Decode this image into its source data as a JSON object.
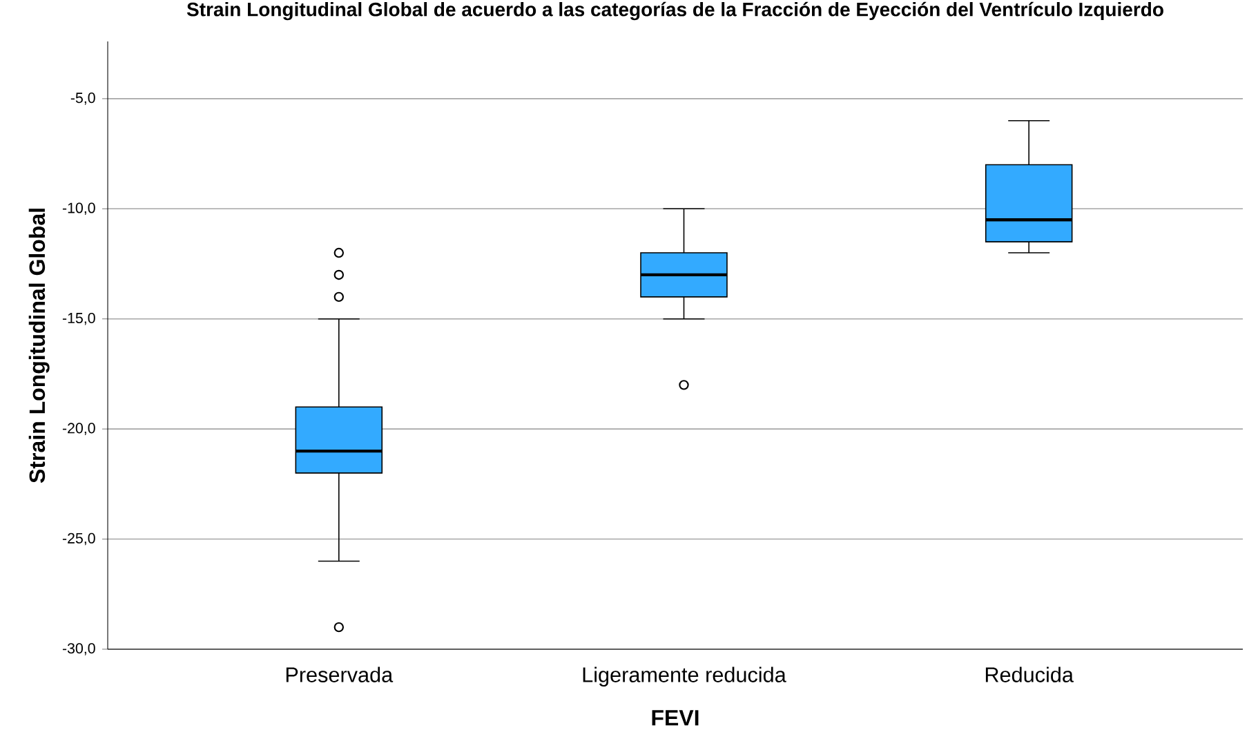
{
  "chart_data": {
    "type": "box",
    "title": "Strain Longitudinal Global de acuerdo a las categorías de la Fracción de Eyección del Ventrículo Izquierdo",
    "xlabel": "FEVI",
    "ylabel": "Strain Longitudinal Global",
    "categories": [
      "Preservada",
      "Ligeramente reducida",
      "Reducida"
    ],
    "series": [
      {
        "color": "#33aaff",
        "boxes": [
          {
            "low": -26,
            "q1": -22,
            "median": -21,
            "q3": -19,
            "high": -15,
            "outliers": [
              -12,
              -13,
              -14,
              -29
            ]
          },
          {
            "low": -15,
            "q1": -14,
            "median": -13,
            "q3": -12,
            "high": -10,
            "outliers": [
              -18
            ]
          },
          {
            "low": -12,
            "q1": -11.5,
            "median": -10.5,
            "q3": -8,
            "high": -6
          }
        ]
      }
    ],
    "ylim": [
      -30,
      -2.4
    ],
    "yticks": [
      {
        "value": -30,
        "label": "-30,0"
      },
      {
        "value": -25,
        "label": "-25,0"
      },
      {
        "value": -20,
        "label": "-20,0"
      },
      {
        "value": -15,
        "label": "-15,0"
      },
      {
        "value": -10,
        "label": "-10,0"
      },
      {
        "value": -5,
        "label": "-5,0"
      }
    ],
    "grid": "y"
  }
}
